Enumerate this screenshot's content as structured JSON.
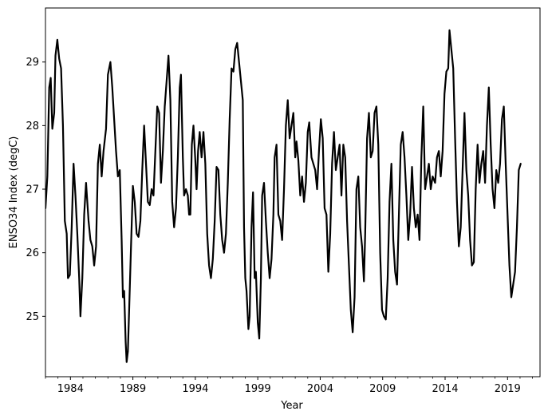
{
  "chart_data": {
    "type": "line",
    "title": "",
    "xlabel": "Year",
    "ylabel": "ENSO34 Index (degC)",
    "xlim": [
      1982.0,
      2021.6
    ],
    "ylim": [
      24.05,
      29.85
    ],
    "grid": false,
    "x_ticks": [
      1984,
      1989,
      1994,
      1999,
      2004,
      2009,
      2014,
      2019
    ],
    "y_ticks": [
      25,
      26,
      27,
      28,
      29
    ],
    "line_color": "#000000",
    "series": [
      {
        "values": [
          [
            1982.0,
            26.7
          ],
          [
            1982.15,
            27.2
          ],
          [
            1982.3,
            28.6
          ],
          [
            1982.42,
            28.75
          ],
          [
            1982.55,
            27.95
          ],
          [
            1982.7,
            28.2
          ],
          [
            1982.8,
            29.1
          ],
          [
            1982.95,
            29.35
          ],
          [
            1983.1,
            29.05
          ],
          [
            1983.25,
            28.9
          ],
          [
            1983.4,
            28.0
          ],
          [
            1983.55,
            26.5
          ],
          [
            1983.7,
            26.3
          ],
          [
            1983.8,
            25.6
          ],
          [
            1983.95,
            25.65
          ],
          [
            1984.1,
            26.4
          ],
          [
            1984.25,
            27.4
          ],
          [
            1984.4,
            26.9
          ],
          [
            1984.55,
            26.3
          ],
          [
            1984.7,
            25.6
          ],
          [
            1984.8,
            25.0
          ],
          [
            1984.95,
            25.6
          ],
          [
            1985.1,
            26.6
          ],
          [
            1985.25,
            27.1
          ],
          [
            1985.45,
            26.5
          ],
          [
            1985.6,
            26.2
          ],
          [
            1985.75,
            26.1
          ],
          [
            1985.9,
            25.8
          ],
          [
            1986.05,
            26.1
          ],
          [
            1986.2,
            27.4
          ],
          [
            1986.35,
            27.7
          ],
          [
            1986.5,
            27.2
          ],
          [
            1986.65,
            27.6
          ],
          [
            1986.85,
            27.95
          ],
          [
            1987.0,
            28.8
          ],
          [
            1987.2,
            29.0
          ],
          [
            1987.35,
            28.6
          ],
          [
            1987.5,
            28.1
          ],
          [
            1987.65,
            27.6
          ],
          [
            1987.8,
            27.2
          ],
          [
            1987.95,
            27.3
          ],
          [
            1988.1,
            26.2
          ],
          [
            1988.2,
            25.3
          ],
          [
            1988.3,
            25.4
          ],
          [
            1988.42,
            24.6
          ],
          [
            1988.5,
            24.28
          ],
          [
            1988.6,
            24.45
          ],
          [
            1988.7,
            25.1
          ],
          [
            1988.85,
            26.1
          ],
          [
            1989.0,
            27.05
          ],
          [
            1989.15,
            26.8
          ],
          [
            1989.3,
            26.3
          ],
          [
            1989.45,
            26.25
          ],
          [
            1989.6,
            26.5
          ],
          [
            1989.75,
            27.3
          ],
          [
            1989.9,
            28.0
          ],
          [
            1990.05,
            27.4
          ],
          [
            1990.2,
            26.8
          ],
          [
            1990.35,
            26.75
          ],
          [
            1990.5,
            27.0
          ],
          [
            1990.65,
            26.9
          ],
          [
            1990.8,
            27.6
          ],
          [
            1990.95,
            28.3
          ],
          [
            1991.1,
            28.2
          ],
          [
            1991.25,
            27.1
          ],
          [
            1991.4,
            27.6
          ],
          [
            1991.55,
            28.3
          ],
          [
            1991.7,
            28.7
          ],
          [
            1991.85,
            29.1
          ],
          [
            1992.0,
            28.4
          ],
          [
            1992.15,
            26.8
          ],
          [
            1992.3,
            26.4
          ],
          [
            1992.45,
            26.7
          ],
          [
            1992.6,
            27.5
          ],
          [
            1992.75,
            28.6
          ],
          [
            1992.85,
            28.8
          ],
          [
            1993.0,
            27.5
          ],
          [
            1993.1,
            26.9
          ],
          [
            1993.25,
            27.0
          ],
          [
            1993.4,
            26.9
          ],
          [
            1993.5,
            26.6
          ],
          [
            1993.6,
            26.6
          ],
          [
            1993.72,
            27.7
          ],
          [
            1993.85,
            28.0
          ],
          [
            1994.0,
            27.45
          ],
          [
            1994.1,
            27.0
          ],
          [
            1994.22,
            27.6
          ],
          [
            1994.35,
            27.9
          ],
          [
            1994.5,
            27.5
          ],
          [
            1994.65,
            27.9
          ],
          [
            1994.8,
            27.4
          ],
          [
            1994.95,
            26.3
          ],
          [
            1995.1,
            25.8
          ],
          [
            1995.25,
            25.6
          ],
          [
            1995.4,
            25.9
          ],
          [
            1995.55,
            26.5
          ],
          [
            1995.7,
            27.35
          ],
          [
            1995.85,
            27.3
          ],
          [
            1996.0,
            26.6
          ],
          [
            1996.15,
            26.2
          ],
          [
            1996.3,
            26.0
          ],
          [
            1996.45,
            26.3
          ],
          [
            1996.6,
            27.1
          ],
          [
            1996.75,
            28.1
          ],
          [
            1996.9,
            28.9
          ],
          [
            1997.05,
            28.85
          ],
          [
            1997.2,
            29.2
          ],
          [
            1997.35,
            29.3
          ],
          [
            1997.5,
            29.0
          ],
          [
            1997.65,
            28.7
          ],
          [
            1997.8,
            28.4
          ],
          [
            1997.9,
            26.4
          ],
          [
            1998.0,
            25.6
          ],
          [
            1998.1,
            25.4
          ],
          [
            1998.25,
            24.8
          ],
          [
            1998.35,
            25.0
          ],
          [
            1998.5,
            26.4
          ],
          [
            1998.62,
            26.95
          ],
          [
            1998.75,
            25.6
          ],
          [
            1998.85,
            25.7
          ],
          [
            1999.0,
            24.9
          ],
          [
            1999.12,
            24.65
          ],
          [
            1999.25,
            25.6
          ],
          [
            1999.35,
            26.9
          ],
          [
            1999.5,
            27.1
          ],
          [
            1999.65,
            26.5
          ],
          [
            1999.8,
            26.0
          ],
          [
            1999.95,
            25.6
          ],
          [
            2000.1,
            25.9
          ],
          [
            2000.25,
            26.6
          ],
          [
            2000.35,
            27.5
          ],
          [
            2000.5,
            27.7
          ],
          [
            2000.65,
            26.6
          ],
          [
            2000.8,
            26.5
          ],
          [
            2000.95,
            26.2
          ],
          [
            2001.1,
            27.0
          ],
          [
            2001.25,
            28.0
          ],
          [
            2001.4,
            28.4
          ],
          [
            2001.55,
            27.8
          ],
          [
            2001.7,
            28.0
          ],
          [
            2001.85,
            28.2
          ],
          [
            2002.0,
            27.5
          ],
          [
            2002.1,
            27.75
          ],
          [
            2002.25,
            27.45
          ],
          [
            2002.4,
            26.9
          ],
          [
            2002.55,
            27.2
          ],
          [
            2002.7,
            26.8
          ],
          [
            2002.85,
            27.1
          ],
          [
            2003.0,
            27.9
          ],
          [
            2003.12,
            28.05
          ],
          [
            2003.3,
            27.5
          ],
          [
            2003.45,
            27.4
          ],
          [
            2003.6,
            27.3
          ],
          [
            2003.75,
            27.0
          ],
          [
            2003.9,
            27.6
          ],
          [
            2004.05,
            28.1
          ],
          [
            2004.2,
            27.8
          ],
          [
            2004.35,
            26.7
          ],
          [
            2004.5,
            26.6
          ],
          [
            2004.65,
            25.7
          ],
          [
            2004.8,
            26.3
          ],
          [
            2004.95,
            27.4
          ],
          [
            2005.1,
            27.9
          ],
          [
            2005.25,
            27.3
          ],
          [
            2005.4,
            27.5
          ],
          [
            2005.55,
            27.7
          ],
          [
            2005.7,
            26.9
          ],
          [
            2005.85,
            27.7
          ],
          [
            2006.0,
            27.5
          ],
          [
            2006.15,
            26.5
          ],
          [
            2006.3,
            25.8
          ],
          [
            2006.45,
            25.1
          ],
          [
            2006.6,
            24.75
          ],
          [
            2006.75,
            25.3
          ],
          [
            2006.9,
            27.0
          ],
          [
            2007.05,
            27.2
          ],
          [
            2007.2,
            26.4
          ],
          [
            2007.35,
            26.1
          ],
          [
            2007.5,
            25.55
          ],
          [
            2007.6,
            26.3
          ],
          [
            2007.75,
            27.8
          ],
          [
            2007.9,
            28.2
          ],
          [
            2008.05,
            27.5
          ],
          [
            2008.2,
            27.6
          ],
          [
            2008.35,
            28.2
          ],
          [
            2008.5,
            28.3
          ],
          [
            2008.65,
            27.7
          ],
          [
            2008.8,
            26.0
          ],
          [
            2008.95,
            25.1
          ],
          [
            2009.1,
            25.0
          ],
          [
            2009.25,
            24.95
          ],
          [
            2009.4,
            25.6
          ],
          [
            2009.55,
            26.8
          ],
          [
            2009.7,
            27.4
          ],
          [
            2009.85,
            26.2
          ],
          [
            2010.0,
            25.7
          ],
          [
            2010.15,
            25.5
          ],
          [
            2010.3,
            26.6
          ],
          [
            2010.45,
            27.7
          ],
          [
            2010.6,
            27.9
          ],
          [
            2010.75,
            27.5
          ],
          [
            2010.9,
            26.9
          ],
          [
            2011.05,
            26.2
          ],
          [
            2011.2,
            26.6
          ],
          [
            2011.35,
            27.35
          ],
          [
            2011.5,
            26.7
          ],
          [
            2011.65,
            26.4
          ],
          [
            2011.8,
            26.6
          ],
          [
            2011.95,
            26.2
          ],
          [
            2012.1,
            27.5
          ],
          [
            2012.25,
            28.3
          ],
          [
            2012.4,
            27.0
          ],
          [
            2012.55,
            27.2
          ],
          [
            2012.7,
            27.4
          ],
          [
            2012.85,
            27.0
          ],
          [
            2013.0,
            27.2
          ],
          [
            2013.2,
            27.1
          ],
          [
            2013.35,
            27.5
          ],
          [
            2013.5,
            27.6
          ],
          [
            2013.65,
            27.2
          ],
          [
            2013.8,
            27.6
          ],
          [
            2013.95,
            28.5
          ],
          [
            2014.1,
            28.85
          ],
          [
            2014.25,
            28.9
          ],
          [
            2014.35,
            29.5
          ],
          [
            2014.5,
            29.2
          ],
          [
            2014.65,
            28.9
          ],
          [
            2014.8,
            27.8
          ],
          [
            2014.95,
            26.8
          ],
          [
            2015.1,
            26.1
          ],
          [
            2015.25,
            26.4
          ],
          [
            2015.4,
            27.3
          ],
          [
            2015.55,
            28.2
          ],
          [
            2015.7,
            27.3
          ],
          [
            2015.85,
            26.9
          ],
          [
            2016.0,
            26.2
          ],
          [
            2016.15,
            25.8
          ],
          [
            2016.3,
            25.85
          ],
          [
            2016.45,
            27.0
          ],
          [
            2016.6,
            27.7
          ],
          [
            2016.75,
            27.1
          ],
          [
            2016.9,
            27.4
          ],
          [
            2017.05,
            27.6
          ],
          [
            2017.2,
            27.1
          ],
          [
            2017.35,
            28.0
          ],
          [
            2017.5,
            28.6
          ],
          [
            2017.65,
            27.7
          ],
          [
            2017.8,
            27.0
          ],
          [
            2017.95,
            26.7
          ],
          [
            2018.1,
            27.3
          ],
          [
            2018.25,
            27.1
          ],
          [
            2018.4,
            27.4
          ],
          [
            2018.55,
            28.1
          ],
          [
            2018.7,
            28.3
          ],
          [
            2018.85,
            27.4
          ],
          [
            2019.0,
            26.6
          ],
          [
            2019.15,
            25.8
          ],
          [
            2019.3,
            25.3
          ],
          [
            2019.45,
            25.5
          ],
          [
            2019.6,
            25.7
          ],
          [
            2019.75,
            26.4
          ],
          [
            2019.9,
            27.3
          ],
          [
            2020.05,
            27.4
          ]
        ]
      }
    ]
  }
}
